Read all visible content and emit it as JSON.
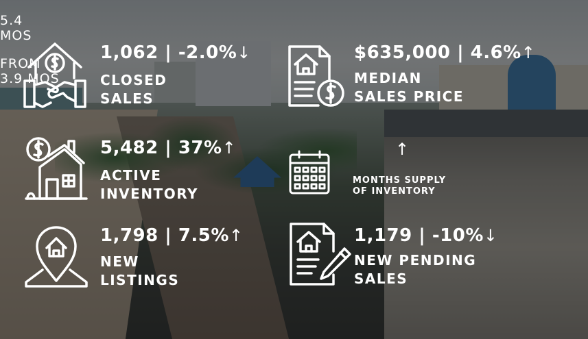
{
  "stats": {
    "closed_sales": {
      "icon": "house-handshake-dollar-icon",
      "value": "1,062  | -2.0%",
      "trend": "down",
      "label_line1": "CLOSED",
      "label_line2": "SALES"
    },
    "median_sales_price": {
      "icon": "house-document-dollar-icon",
      "value": "$635,000 | 4.6%",
      "trend": "up",
      "label_line1": "MEDIAN",
      "label_line2": "SALES PRICE"
    },
    "active_inventory": {
      "icon": "house-dollar-tag-icon",
      "value": "5,482 | 37%",
      "trend": "up",
      "label_line1": "ACTIVE",
      "label_line2": "INVENTORY"
    },
    "months_supply": {
      "icon": "calendar-icon",
      "current_value": "5.4",
      "current_unit": "MOS",
      "trend": "up",
      "from_label": "FROM",
      "from_value": "3.9  MOS",
      "label_line1": "MONTHS SUPPLY",
      "label_line2": "OF INVENTORY"
    },
    "new_listings": {
      "icon": "house-map-pin-icon",
      "value": "1,798 | 7.5%",
      "trend": "up",
      "label_line1": "NEW",
      "label_line2": "LISTINGS"
    },
    "new_pending_sales": {
      "icon": "house-document-pen-icon",
      "value": "1,179 |  -10%",
      "trend": "down",
      "label_line1": "NEW PENDING",
      "label_line2": "SALES"
    }
  },
  "arrows": {
    "up": "↑",
    "down": "↓"
  },
  "colors": {
    "text": "#ffffff",
    "overlay": "#121416"
  }
}
